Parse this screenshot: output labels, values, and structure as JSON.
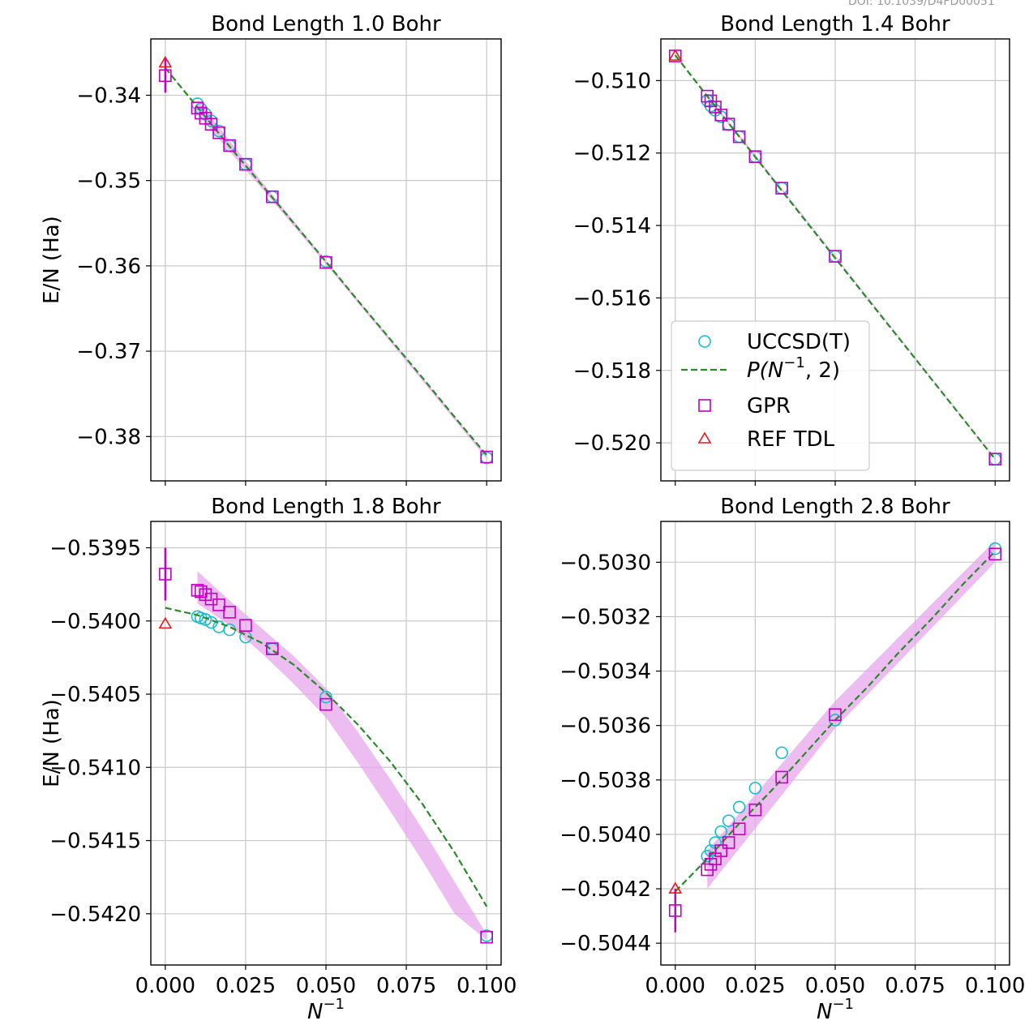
{
  "doi_text": "DOI: 10.1039/D4FD00051",
  "legend": {
    "uccsd": "UCCSD(T)",
    "poly_main": "P(N",
    "poly_sup": "−1",
    "poly_tail": ", 2)",
    "gpr": "GPR",
    "ref": "REF TDL"
  },
  "colors": {
    "uccsd": "#17becf",
    "fit": "#2a8a2a",
    "gpr": "#c000c0",
    "ref": "#e8191c",
    "band": "#e7a7ec",
    "grid": "#c8c8c8"
  },
  "chart_data": [
    {
      "type": "scatter",
      "title": "Bond Length 1.0 Bohr",
      "ylabel": "E/N (Ha)",
      "xlabel": "",
      "xlim": [
        -0.0045,
        0.1045
      ],
      "ylim": [
        -0.3852,
        -0.3334
      ],
      "xticks": [
        0.0,
        0.025,
        0.05,
        0.075,
        0.1
      ],
      "xticklabels": [
        "",
        "",
        "",
        "",
        ""
      ],
      "yticks": [
        -0.34,
        -0.35,
        -0.36,
        -0.37,
        -0.38
      ],
      "yticklabels": [
        "−0.34",
        "−0.35",
        "−0.36",
        "−0.37",
        "−0.38"
      ],
      "grid": true,
      "legend_position": "",
      "uccsd": {
        "x": [
          0.01,
          0.0111,
          0.0125,
          0.0143,
          0.0167,
          0.02,
          0.025,
          0.0333,
          0.05,
          0.1
        ],
        "y": [
          -0.341,
          -0.3416,
          -0.3422,
          -0.343,
          -0.3442,
          -0.3459,
          -0.3481,
          -0.3519,
          -0.3595,
          -0.3825
        ]
      },
      "fit": {
        "x": [
          0.0,
          0.01,
          0.02,
          0.03,
          0.04,
          0.05,
          0.06,
          0.07,
          0.08,
          0.09,
          0.1
        ],
        "y": [
          -0.3368,
          -0.3414,
          -0.346,
          -0.3505,
          -0.355,
          -0.3595,
          -0.3641,
          -0.3686,
          -0.3731,
          -0.3777,
          -0.3822
        ]
      },
      "gpr": {
        "x": [
          0.0,
          0.01,
          0.0111,
          0.0125,
          0.0143,
          0.0167,
          0.02,
          0.025,
          0.0333,
          0.05,
          0.1
        ],
        "y": [
          -0.3377,
          -0.3415,
          -0.3421,
          -0.3427,
          -0.3434,
          -0.3444,
          -0.3459,
          -0.3481,
          -0.3519,
          -0.3596,
          -0.3824
        ],
        "err": [
          0.002,
          0,
          0,
          0,
          0,
          0,
          0,
          0,
          0,
          0,
          0
        ]
      },
      "band": {
        "x": [
          0.01,
          0.02,
          0.03,
          0.05,
          0.1
        ],
        "upper": [
          -0.3405,
          -0.3453,
          -0.3501,
          -0.3594,
          -0.3822
        ],
        "lower": [
          -0.3422,
          -0.3466,
          -0.3509,
          -0.3598,
          -0.3826
        ]
      },
      "ref": {
        "x": [
          0.0
        ],
        "y": [
          -0.3362
        ]
      }
    },
    {
      "type": "scatter",
      "title": "Bond Length 1.4 Bohr",
      "ylabel": "",
      "xlabel": "",
      "xlim": [
        -0.0045,
        0.1045
      ],
      "ylim": [
        -0.52105,
        -0.50885
      ],
      "xticks": [
        0.0,
        0.025,
        0.05,
        0.075,
        0.1
      ],
      "xticklabels": [
        "",
        "",
        "",
        "",
        ""
      ],
      "yticks": [
        -0.51,
        -0.512,
        -0.514,
        -0.516,
        -0.518,
        -0.52
      ],
      "yticklabels": [
        "−0.510",
        "−0.512",
        "−0.514",
        "−0.516",
        "−0.518",
        "−0.520"
      ],
      "grid": true,
      "legend_position": "lower-left",
      "uccsd": {
        "x": [
          0.01,
          0.0111,
          0.0125,
          0.0143,
          0.0167,
          0.02,
          0.025,
          0.0333,
          0.05,
          0.1
        ],
        "y": [
          -0.51055,
          -0.5107,
          -0.51082,
          -0.511,
          -0.51122,
          -0.51155,
          -0.5121,
          -0.51297,
          -0.51485,
          -0.52045
        ]
      },
      "fit": {
        "x": [
          0.0,
          0.01,
          0.02,
          0.03,
          0.04,
          0.05,
          0.06,
          0.07,
          0.08,
          0.09,
          0.1
        ],
        "y": [
          -0.5093,
          -0.51043,
          -0.51155,
          -0.51267,
          -0.51379,
          -0.5149,
          -0.51601,
          -0.51712,
          -0.51823,
          -0.51934,
          -0.52045
        ]
      },
      "gpr": {
        "x": [
          0.0,
          0.01,
          0.0111,
          0.0125,
          0.0143,
          0.0167,
          0.02,
          0.025,
          0.0333,
          0.05,
          0.1
        ],
        "y": [
          -0.50932,
          -0.51043,
          -0.51056,
          -0.51073,
          -0.51095,
          -0.5112,
          -0.51155,
          -0.5121,
          -0.51297,
          -0.51485,
          -0.52045
        ],
        "err": [
          0,
          0,
          0,
          0,
          0,
          0,
          0,
          0,
          0,
          0,
          0
        ]
      },
      "band": {
        "x": [
          0.01,
          0.05,
          0.1
        ],
        "upper": [
          -0.51038,
          -0.51483,
          -0.52043
        ],
        "lower": [
          -0.51048,
          -0.51487,
          -0.52047
        ]
      },
      "ref": {
        "x": [
          0.0
        ],
        "y": [
          -0.50932
        ]
      }
    },
    {
      "type": "scatter",
      "title": "Bond Length 1.8 Bohr",
      "ylabel": "E/N (Ha)",
      "xlabel": "N",
      "xlabel_sup": "−1",
      "xlim": [
        -0.0045,
        0.1045
      ],
      "ylim": [
        -0.54235,
        -0.53932
      ],
      "xticks": [
        0.0,
        0.025,
        0.05,
        0.075,
        0.1
      ],
      "xticklabels": [
        "0.000",
        "0.025",
        "0.050",
        "0.075",
        "0.100"
      ],
      "yticks": [
        -0.5395,
        -0.54,
        -0.5405,
        -0.541,
        -0.5415,
        -0.542
      ],
      "yticklabels": [
        "−0.5395",
        "−0.5400",
        "−0.5405",
        "−0.5410",
        "−0.5415",
        "−0.5420"
      ],
      "grid": true,
      "legend_position": "",
      "uccsd": {
        "x": [
          0.01,
          0.0111,
          0.0125,
          0.0143,
          0.0167,
          0.02,
          0.025,
          0.0333,
          0.05,
          0.1
        ],
        "y": [
          -0.53997,
          -0.53998,
          -0.53999,
          -0.54001,
          -0.54004,
          -0.54006,
          -0.54011,
          -0.54019,
          -0.54052,
          -0.54215
        ]
      },
      "fit": {
        "x": [
          0.0,
          0.01,
          0.02,
          0.03,
          0.04,
          0.05,
          0.06,
          0.07,
          0.08,
          0.09,
          0.1
        ],
        "y": [
          -0.53991,
          -0.53996,
          -0.54004,
          -0.54015,
          -0.5403,
          -0.54049,
          -0.54071,
          -0.54096,
          -0.54125,
          -0.54158,
          -0.54195
        ]
      },
      "gpr": {
        "x": [
          0.0,
          0.01,
          0.0111,
          0.0125,
          0.0143,
          0.0167,
          0.02,
          0.025,
          0.0333,
          0.05,
          0.1
        ],
        "y": [
          -0.53968,
          -0.53979,
          -0.5398,
          -0.53982,
          -0.53985,
          -0.53989,
          -0.53994,
          -0.54003,
          -0.54019,
          -0.54057,
          -0.54216
        ],
        "err": [
          0.00018,
          0,
          0,
          0,
          0,
          0,
          0,
          0,
          0,
          0,
          0
        ]
      },
      "band": {
        "x": [
          0.01,
          0.02,
          0.03,
          0.04,
          0.05,
          0.06,
          0.07,
          0.08,
          0.09,
          0.1
        ],
        "upper": [
          -0.53966,
          -0.53986,
          -0.54005,
          -0.54024,
          -0.54046,
          -0.54076,
          -0.54108,
          -0.54142,
          -0.54178,
          -0.54214
        ],
        "lower": [
          -0.53988,
          -0.54003,
          -0.54022,
          -0.54043,
          -0.54066,
          -0.54097,
          -0.5413,
          -0.54164,
          -0.542,
          -0.54218
        ]
      },
      "ref": {
        "x": [
          0.0
        ],
        "y": [
          -0.54002
        ]
      }
    },
    {
      "type": "scatter",
      "title": "Bond Length 2.8 Bohr",
      "ylabel": "",
      "xlabel": "N",
      "xlabel_sup": "−1",
      "xlim": [
        -0.0045,
        0.1045
      ],
      "ylim": [
        -0.50448,
        -0.50285
      ],
      "xticks": [
        0.0,
        0.025,
        0.05,
        0.075,
        0.1
      ],
      "xticklabels": [
        "0.000",
        "0.025",
        "0.050",
        "0.075",
        "0.100"
      ],
      "yticks": [
        -0.503,
        -0.5032,
        -0.5034,
        -0.5036,
        -0.5038,
        -0.504,
        -0.5042,
        -0.5044
      ],
      "yticklabels": [
        "−0.5030",
        "−0.5032",
        "−0.5034",
        "−0.5036",
        "−0.5038",
        "−0.5040",
        "−0.5042",
        "−0.5044"
      ],
      "grid": true,
      "legend_position": "",
      "uccsd": {
        "x": [
          0.01,
          0.0111,
          0.0125,
          0.0143,
          0.0167,
          0.02,
          0.025,
          0.0333,
          0.05,
          0.1
        ],
        "y": [
          -0.50408,
          -0.50406,
          -0.50403,
          -0.50399,
          -0.50395,
          -0.5039,
          -0.50383,
          -0.5037,
          -0.50358,
          -0.50295
        ]
      },
      "fit": {
        "x": [
          0.0,
          0.01,
          0.02,
          0.03,
          0.04,
          0.05,
          0.06,
          0.07,
          0.08,
          0.09,
          0.1
        ],
        "y": [
          -0.50421,
          -0.50409,
          -0.50396,
          -0.50384,
          -0.50371,
          -0.50358,
          -0.50346,
          -0.50333,
          -0.50321,
          -0.50308,
          -0.50296
        ]
      },
      "gpr": {
        "x": [
          0.0,
          0.01,
          0.0111,
          0.0125,
          0.0143,
          0.0167,
          0.02,
          0.025,
          0.0333,
          0.05,
          0.1
        ],
        "y": [
          -0.50428,
          -0.50413,
          -0.50411,
          -0.50409,
          -0.50406,
          -0.50403,
          -0.50398,
          -0.50391,
          -0.50379,
          -0.50356,
          -0.50297
        ],
        "err": [
          8e-05,
          0,
          0,
          0,
          0,
          0,
          0,
          0,
          0,
          0,
          0
        ]
      },
      "band": {
        "x": [
          0.01,
          0.05,
          0.1
        ],
        "upper": [
          -0.50406,
          -0.50351,
          -0.50292
        ],
        "lower": [
          -0.5042,
          -0.50361,
          -0.503
        ]
      },
      "ref": {
        "x": [
          0.0
        ],
        "y": [
          -0.5042
        ]
      }
    }
  ]
}
